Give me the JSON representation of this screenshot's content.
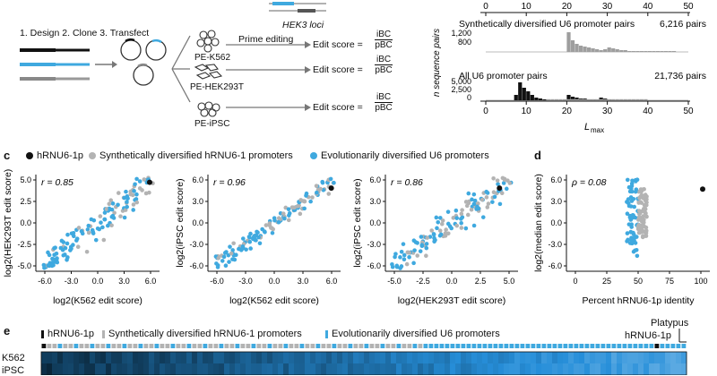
{
  "colors": {
    "black": "#111111",
    "gray": "#b3b3b3",
    "blue": "#3fa9df",
    "histBlack": "#111111",
    "histGray": "#9e9e9e"
  },
  "workflow": {
    "steps": "1. Design  2. Clone  3. Transfect",
    "hek3_label": "HEK3 loci",
    "prime_editing": "Prime editing",
    "cell_lines": [
      "PE-K562",
      "PE-HEK293T",
      "PE-iPSC"
    ],
    "edit_score_label": "Edit score =",
    "numerator": "iBC",
    "denominator": "pBC"
  },
  "histogram": {
    "ylabel": "n sequence pairs",
    "xlabel": "L",
    "xlabel_sub": "max",
    "xticks": [
      "0",
      "10",
      "20",
      "30",
      "40",
      "50"
    ],
    "top": {
      "title": "Synthetically diversified U6 promoter pairs",
      "count": "6,216 pairs",
      "yticks": [
        "1,200",
        "800"
      ]
    },
    "bottom": {
      "title": "All U6 promoter pairs",
      "count": "21,736 pairs",
      "yticks": [
        "5,000",
        "2,500",
        "0"
      ]
    }
  },
  "legend_c": {
    "panel": "c",
    "items": [
      {
        "label": "hRNU6-1p",
        "color": "#111111"
      },
      {
        "label": "Synthetically diversified hRNU6-1 promoters",
        "color": "#b3b3b3"
      },
      {
        "label": "Evolutionarily diversified U6 promoters",
        "color": "#3fa9df"
      }
    ]
  },
  "scatters": [
    {
      "r": "r = 0.85",
      "xlabel": "log2(K562 edit score)",
      "ylabel": "log2(HEK293T edit score)",
      "xticks": [
        "-6.0",
        "-3.0",
        "0.0",
        "3.0",
        "6.0"
      ],
      "yticks": [
        "5.0",
        "2.5",
        "0.0",
        "-2.5",
        "-5.0"
      ]
    },
    {
      "r": "r = 0.96",
      "xlabel": "log2(K562 edit score)",
      "ylabel": "log2(iPSC edit score)",
      "xticks": [
        "-6.0",
        "-3.0",
        "0.0",
        "3.0",
        "6.0"
      ],
      "yticks": [
        "6.0",
        "3.0",
        "0.0",
        "-3.0",
        "-6.0"
      ]
    },
    {
      "r": "r = 0.86",
      "xlabel": "log2(HEK293T edit score)",
      "ylabel": "log2(iPSC edit score)",
      "xticks": [
        "-5.0",
        "-2.5",
        "0.0",
        "2.5",
        "5.0"
      ],
      "yticks": [
        "6.0",
        "3.0",
        "0.0",
        "-3.0",
        "-6.0"
      ]
    }
  ],
  "panel_d": {
    "panel": "d",
    "rho": "ρ = 0.08",
    "xlabel": "Percent hRNU6-1p identity",
    "ylabel": "log2(median edit score)",
    "xticks": [
      "0",
      "25",
      "50",
      "75",
      "100"
    ],
    "yticks": [
      "6.0",
      "3.0",
      "0.0",
      "-3.0",
      "-6.0"
    ]
  },
  "panel_e": {
    "panel": "e",
    "legend": [
      "hRNU6-1p",
      "Synthetically diversified hRNU6-1 promoters",
      "Evolutionarily diversified U6 promoters"
    ],
    "platypus": "Platypus",
    "hrnu6": "hRNU6-1p",
    "rows": [
      "K562",
      "iPSC"
    ]
  },
  "panel_c_label": "c"
}
